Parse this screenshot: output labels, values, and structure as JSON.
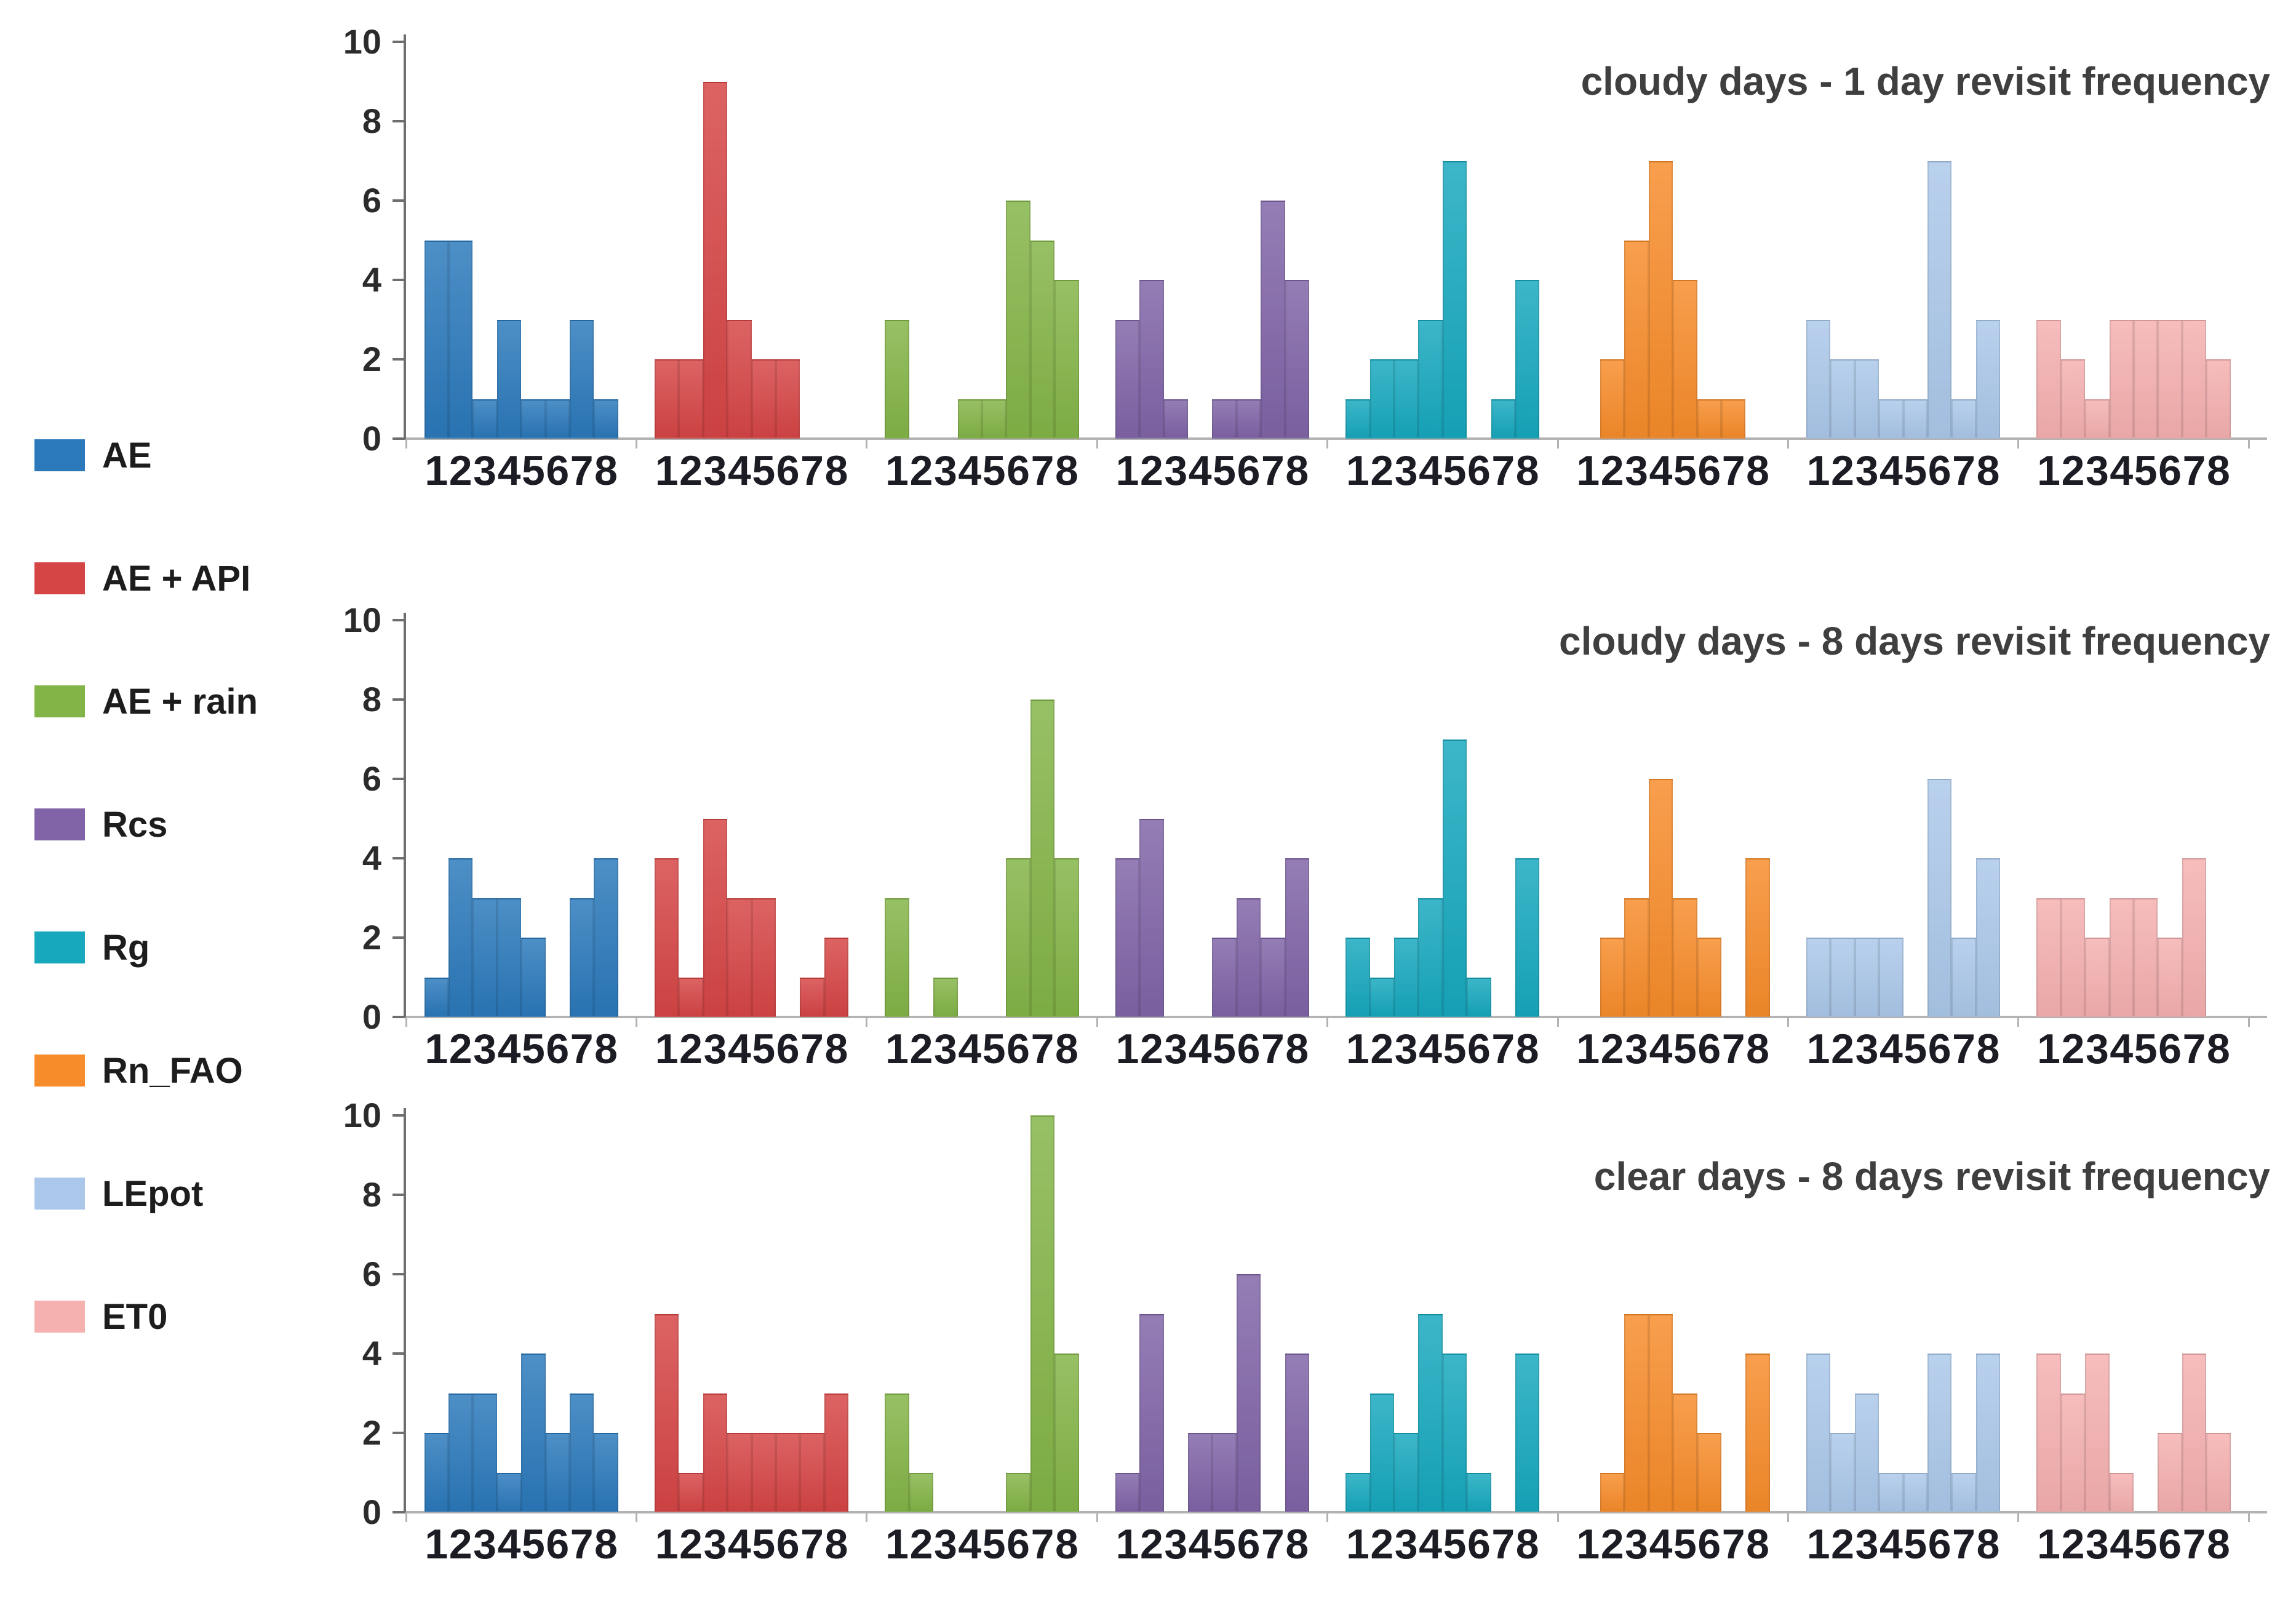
{
  "figure": {
    "background": "#ffffff"
  },
  "legend": {
    "items": [
      {
        "label": "AE",
        "color": "#2B79BB"
      },
      {
        "label": "AE + API",
        "color": "#D64545"
      },
      {
        "label": "AE + rain",
        "color": "#83B447"
      },
      {
        "label": "Rcs",
        "color": "#8064A7"
      },
      {
        "label": "Rg",
        "color": "#17A8BE"
      },
      {
        "label": "Rn_FAO",
        "color": "#F78C2B"
      },
      {
        "label": "LEpot",
        "color": "#ABC8EA"
      },
      {
        "label": "ET0",
        "color": "#F5B0B0"
      }
    ]
  },
  "axes": {
    "y_axis_color": "#6e6e6e",
    "baseline_color": "#b3b3b3",
    "y_label_color": "#2b2b2b",
    "x_digit_color": "#1c1c24",
    "title_color": "#3f3f3f"
  },
  "chart_data": [
    {
      "type": "bar",
      "variant": "grouped-histogram",
      "title": "cloudy days - 1 day revisit frequency",
      "xlabel": "",
      "ylabel": "",
      "ylim": [
        0,
        10
      ],
      "yticks": [
        0,
        2,
        4,
        6,
        8,
        10
      ],
      "grid": false,
      "legend_position": "left",
      "categories": [
        "1",
        "2",
        "3",
        "4",
        "5",
        "6",
        "7",
        "8"
      ],
      "series": [
        {
          "name": "AE",
          "values": [
            5,
            5,
            1,
            3,
            1,
            1,
            3,
            1
          ]
        },
        {
          "name": "AE + API",
          "values": [
            2,
            2,
            9,
            3,
            2,
            2,
            0,
            0
          ]
        },
        {
          "name": "AE + rain",
          "values": [
            3,
            0,
            0,
            1,
            1,
            6,
            5,
            4
          ]
        },
        {
          "name": "Rcs",
          "values": [
            3,
            4,
            1,
            0,
            1,
            1,
            6,
            4
          ]
        },
        {
          "name": "Rg",
          "values": [
            1,
            2,
            2,
            3,
            7,
            0,
            1,
            4
          ]
        },
        {
          "name": "Rn_FAO",
          "values": [
            0,
            2,
            5,
            7,
            4,
            1,
            1,
            0
          ]
        },
        {
          "name": "LEpot",
          "values": [
            3,
            2,
            2,
            1,
            1,
            7,
            1,
            3
          ]
        },
        {
          "name": "ET0",
          "values": [
            3,
            2,
            1,
            3,
            3,
            3,
            3,
            2
          ]
        }
      ]
    },
    {
      "type": "bar",
      "variant": "grouped-histogram",
      "title": "cloudy days - 8 days revisit frequency",
      "xlabel": "",
      "ylabel": "",
      "ylim": [
        0,
        10
      ],
      "yticks": [
        0,
        2,
        4,
        6,
        8,
        10
      ],
      "grid": false,
      "legend_position": "left",
      "categories": [
        "1",
        "2",
        "3",
        "4",
        "5",
        "6",
        "7",
        "8"
      ],
      "series": [
        {
          "name": "AE",
          "values": [
            1,
            4,
            3,
            3,
            2,
            0,
            3,
            4
          ]
        },
        {
          "name": "AE + API",
          "values": [
            4,
            1,
            5,
            3,
            3,
            0,
            1,
            2
          ]
        },
        {
          "name": "AE + rain",
          "values": [
            3,
            0,
            1,
            0,
            0,
            4,
            8,
            4
          ]
        },
        {
          "name": "Rcs",
          "values": [
            4,
            5,
            0,
            0,
            2,
            3,
            2,
            4
          ]
        },
        {
          "name": "Rg",
          "values": [
            2,
            1,
            2,
            3,
            7,
            1,
            0,
            4
          ]
        },
        {
          "name": "Rn_FAO",
          "values": [
            0,
            2,
            3,
            6,
            3,
            2,
            0,
            4
          ]
        },
        {
          "name": "LEpot",
          "values": [
            2,
            2,
            2,
            2,
            0,
            6,
            2,
            4
          ]
        },
        {
          "name": "ET0",
          "values": [
            3,
            3,
            2,
            3,
            3,
            2,
            4,
            0
          ]
        }
      ]
    },
    {
      "type": "bar",
      "variant": "grouped-histogram",
      "title": "clear days - 8 days revisit frequency",
      "xlabel": "",
      "ylabel": "",
      "ylim": [
        0,
        10
      ],
      "yticks": [
        0,
        2,
        4,
        6,
        8,
        10
      ],
      "grid": false,
      "legend_position": "left",
      "categories": [
        "1",
        "2",
        "3",
        "4",
        "5",
        "6",
        "7",
        "8"
      ],
      "series": [
        {
          "name": "AE",
          "values": [
            2,
            3,
            3,
            1,
            4,
            2,
            3,
            2
          ]
        },
        {
          "name": "AE + API",
          "values": [
            5,
            1,
            3,
            2,
            2,
            2,
            2,
            3
          ]
        },
        {
          "name": "AE + rain",
          "values": [
            3,
            1,
            0,
            0,
            0,
            1,
            10,
            4
          ]
        },
        {
          "name": "Rcs",
          "values": [
            1,
            5,
            0,
            2,
            2,
            6,
            0,
            4
          ]
        },
        {
          "name": "Rg",
          "values": [
            1,
            3,
            2,
            5,
            4,
            1,
            0,
            4
          ]
        },
        {
          "name": "Rn_FAO",
          "values": [
            0,
            1,
            5,
            5,
            3,
            2,
            0,
            4
          ]
        },
        {
          "name": "LEpot",
          "values": [
            4,
            2,
            3,
            1,
            1,
            4,
            1,
            4
          ]
        },
        {
          "name": "ET0",
          "values": [
            4,
            3,
            4,
            1,
            0,
            2,
            4,
            2
          ]
        }
      ]
    }
  ]
}
